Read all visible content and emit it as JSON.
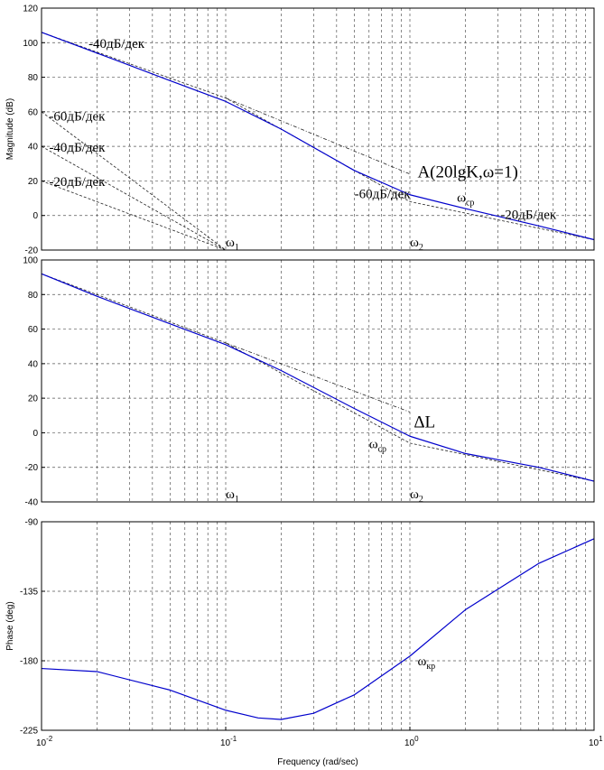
{
  "chart_data": [
    {
      "type": "line",
      "ylabel": "Magnitude (dB)",
      "xscale": "log",
      "xlim": [
        0.01,
        10
      ],
      "ylim": [
        -20,
        120
      ],
      "yticks": [
        "120",
        "100",
        "80",
        "60",
        "40",
        "20",
        "0",
        "-20"
      ],
      "grid": true,
      "series": [
        {
          "color": "#0000cc",
          "x": [
            0.01,
            0.02,
            0.05,
            0.1,
            0.2,
            0.5,
            1,
            2,
            5,
            10
          ],
          "y": [
            106,
            94,
            78,
            66,
            50,
            26,
            12,
            4,
            -6,
            -14
          ]
        }
      ],
      "asymptotes": [
        {
          "style": "dashed",
          "x": [
            0.01,
            0.1,
            1,
            10
          ],
          "y": [
            106,
            68,
            8,
            -14
          ]
        },
        {
          "style": "dash-dot",
          "x": [
            0.1,
            1
          ],
          "y": [
            68,
            24
          ]
        },
        {
          "style": "dashed",
          "x": [
            0.01,
            0.1
          ],
          "y": [
            60,
            -20
          ]
        },
        {
          "style": "dashed",
          "x": [
            0.01,
            0.1
          ],
          "y": [
            40,
            -20
          ]
        },
        {
          "style": "dashed",
          "x": [
            0.01,
            0.1
          ],
          "y": [
            20,
            -20
          ]
        }
      ],
      "annotations": [
        {
          "text": "-40дБ/дек",
          "x": 0.018,
          "y": 97
        },
        {
          "text": "-60дБ/дек",
          "x": 0.011,
          "y": 55
        },
        {
          "text": "-40дБ/дек",
          "x": 0.011,
          "y": 37
        },
        {
          "text": "-20дБ/дек",
          "x": 0.011,
          "y": 17
        },
        {
          "text": "A(20lgK,ω=1)",
          "x": 1.1,
          "y": 22
        },
        {
          "text": "-60дБ/дек",
          "x": 0.5,
          "y": 10
        },
        {
          "text": "ω",
          "sub": "ср",
          "x": 1.8,
          "y": 8
        },
        {
          "text": "-20дБ/дек",
          "x": 3.1,
          "y": -2
        },
        {
          "text": "ω",
          "sub": "1",
          "x": 0.1,
          "y": -18
        },
        {
          "text": "ω",
          "sub": "2",
          "x": 1.0,
          "y": -18
        }
      ]
    },
    {
      "type": "line",
      "xscale": "log",
      "xlim": [
        0.01,
        10
      ],
      "ylim": [
        -40,
        100
      ],
      "yticks": [
        "100",
        "80",
        "60",
        "40",
        "20",
        "0",
        "-20",
        "-40"
      ],
      "grid": true,
      "series": [
        {
          "color": "#0000cc",
          "x": [
            0.01,
            0.02,
            0.05,
            0.1,
            0.2,
            0.5,
            1,
            2,
            5,
            10
          ],
          "y": [
            92,
            79,
            63,
            51,
            36,
            14,
            -2,
            -12,
            -20,
            -28
          ]
        }
      ],
      "asymptotes": [
        {
          "style": "dashed",
          "x": [
            0.01,
            0.1,
            1,
            10
          ],
          "y": [
            92,
            52,
            -6,
            -28
          ]
        },
        {
          "style": "dash-dot",
          "x": [
            0.1,
            1
          ],
          "y": [
            52,
            12
          ]
        }
      ],
      "annotations": [
        {
          "text": "ΔL",
          "x": 1.05,
          "y": 3
        },
        {
          "text": "ω",
          "sub": "ср",
          "x": 0.6,
          "y": -9
        },
        {
          "text": "ω",
          "sub": "1",
          "x": 0.1,
          "y": -38
        },
        {
          "text": "ω",
          "sub": "2",
          "x": 1.0,
          "y": -38
        }
      ]
    },
    {
      "type": "line",
      "ylabel": "Phase (deg)",
      "xlabel": "Frequency  (rad/sec)",
      "xscale": "log",
      "xlim": [
        0.01,
        10
      ],
      "ylim": [
        -225,
        -90
      ],
      "yticks": [
        "-90",
        "-135",
        "-180",
        "-225"
      ],
      "xticks": [
        {
          "base": "10",
          "exp": "-2"
        },
        {
          "base": "10",
          "exp": "-1"
        },
        {
          "base": "10",
          "exp": "0"
        },
        {
          "base": "10",
          "exp": "1"
        }
      ],
      "grid": true,
      "series": [
        {
          "color": "#0000cc",
          "x": [
            0.01,
            0.02,
            0.05,
            0.1,
            0.15,
            0.2,
            0.3,
            0.5,
            1,
            2,
            5,
            10
          ],
          "y": [
            -185,
            -187,
            -199,
            -212,
            -217,
            -218,
            -214,
            -202,
            -177,
            -147,
            -117,
            -101
          ]
        }
      ],
      "annotations": [
        {
          "text": "ω",
          "sub": "кр",
          "x": 1.1,
          "y": -183
        }
      ]
    }
  ]
}
